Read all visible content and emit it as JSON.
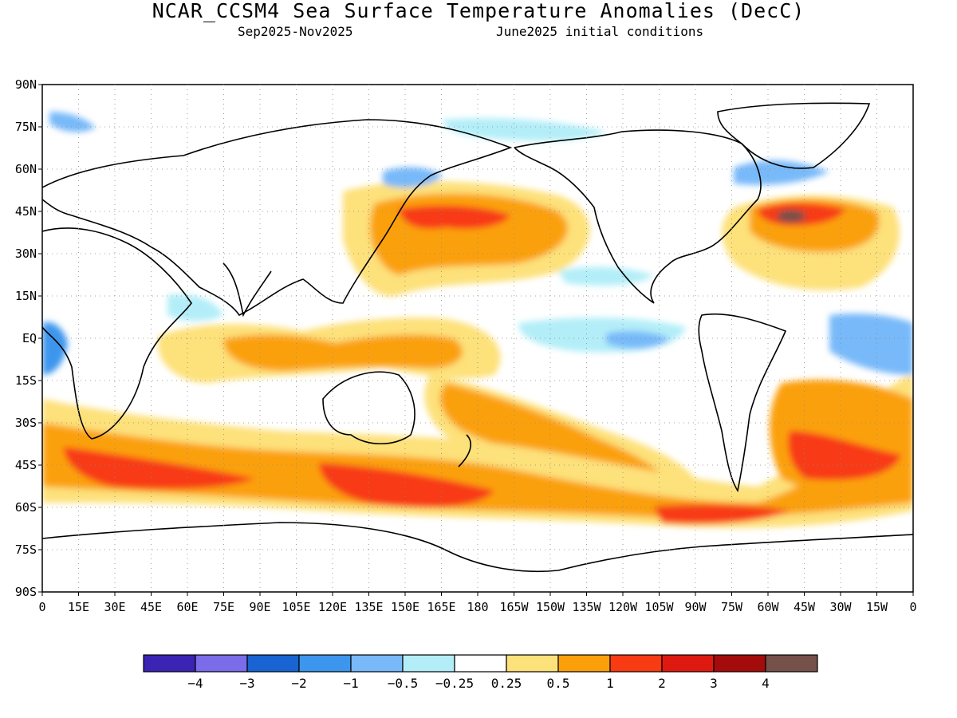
{
  "title": "NCAR_CCSM4 Sea Surface Temperature Anomalies (DecC)",
  "subtitle_period": "Sep2025-Nov2025",
  "subtitle_init": "June2025 initial conditions",
  "lat_ticks": [
    "90N",
    "75N",
    "60N",
    "45N",
    "30N",
    "15N",
    "EQ",
    "15S",
    "30S",
    "45S",
    "60S",
    "75S",
    "90S"
  ],
  "lon_ticks": [
    "0",
    "15E",
    "30E",
    "45E",
    "60E",
    "75E",
    "90E",
    "105E",
    "120E",
    "135E",
    "150E",
    "165E",
    "180",
    "165W",
    "150W",
    "135W",
    "120W",
    "105W",
    "90W",
    "75W",
    "60W",
    "45W",
    "30W",
    "15W",
    "0"
  ],
  "legend": {
    "colors": [
      "#3b23b4",
      "#7b6ce9",
      "#1764d2",
      "#3c96ee",
      "#78b9f9",
      "#b3eef8",
      "#ffffff",
      "#fde17a",
      "#fba00a",
      "#f83b13",
      "#de1a10",
      "#a40b0b",
      "#76514a"
    ],
    "labels": [
      "-4",
      "-3",
      "-2",
      "-1",
      "-0.5",
      "-0.25",
      "0.25",
      "0.5",
      "1",
      "2",
      "3",
      "4"
    ]
  }
}
